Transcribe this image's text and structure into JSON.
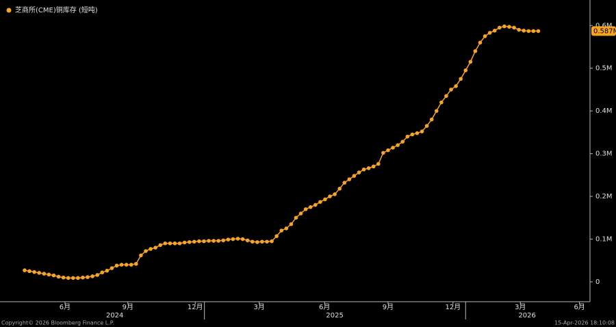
{
  "chart_data": {
    "type": "line",
    "title": "芝商所(CME)铜库存 (短吨)",
    "color": "#f7a325",
    "values": [
      0.027,
      0.025,
      0.023,
      0.021,
      0.019,
      0.017,
      0.015,
      0.012,
      0.01,
      0.009,
      0.009,
      0.009,
      0.01,
      0.011,
      0.013,
      0.016,
      0.022,
      0.026,
      0.032,
      0.038,
      0.04,
      0.04,
      0.04,
      0.042,
      0.062,
      0.072,
      0.077,
      0.08,
      0.086,
      0.09,
      0.09,
      0.09,
      0.09,
      0.092,
      0.093,
      0.094,
      0.095,
      0.095,
      0.096,
      0.096,
      0.096,
      0.097,
      0.099,
      0.1,
      0.101,
      0.1,
      0.097,
      0.094,
      0.093,
      0.094,
      0.094,
      0.095,
      0.107,
      0.12,
      0.125,
      0.135,
      0.15,
      0.16,
      0.17,
      0.175,
      0.18,
      0.187,
      0.193,
      0.2,
      0.205,
      0.218,
      0.232,
      0.24,
      0.248,
      0.256,
      0.263,
      0.266,
      0.27,
      0.276,
      0.302,
      0.308,
      0.314,
      0.32,
      0.328,
      0.34,
      0.345,
      0.348,
      0.352,
      0.365,
      0.38,
      0.4,
      0.42,
      0.435,
      0.45,
      0.458,
      0.475,
      0.495,
      0.515,
      0.54,
      0.56,
      0.575,
      0.583,
      0.588,
      0.595,
      0.598,
      0.597,
      0.595,
      0.59,
      0.588,
      0.587,
      0.587,
      0.587
    ],
    "last_value_label": "0.587M",
    "xlim": [
      -5.085,
      116.67
    ],
    "xticks": [
      {
        "value": 8.33,
        "label": "6月"
      },
      {
        "value": 21.3,
        "label": "9月"
      },
      {
        "value": 35.2,
        "label": "12月"
      },
      {
        "value": 48.4,
        "label": "3月"
      },
      {
        "value": 61.9,
        "label": "6月"
      },
      {
        "value": 75.0,
        "label": "9月"
      },
      {
        "value": 88.4,
        "label": "12月"
      },
      {
        "value": 102.3,
        "label": "3月"
      },
      {
        "value": 114.5,
        "label": "6月"
      }
    ],
    "year_ticks": [
      {
        "value": 18.6,
        "label": "2024"
      },
      {
        "value": 64.0,
        "label": "2025"
      },
      {
        "value": 103.7,
        "label": "2026"
      }
    ],
    "year_breaks": [
      37.1,
      91.0
    ],
    "ylim": [
      -0.0465,
      0.6597
    ],
    "yticks": [
      0,
      {
        "value": 0.1,
        "label": "0.1M"
      },
      {
        "value": 0.2,
        "label": "0.2M"
      },
      {
        "value": 0.3,
        "label": "0.3M"
      },
      {
        "value": 0.4,
        "label": "0.4M"
      },
      {
        "value": 0.5,
        "label": "0.5M"
      },
      {
        "value": 0.6,
        "label": "0.6M"
      }
    ],
    "footer_left": "Copyright© 2026 Bloomberg Finance L.P.",
    "footer_right": "15-Apr-2026 18:10:08"
  }
}
